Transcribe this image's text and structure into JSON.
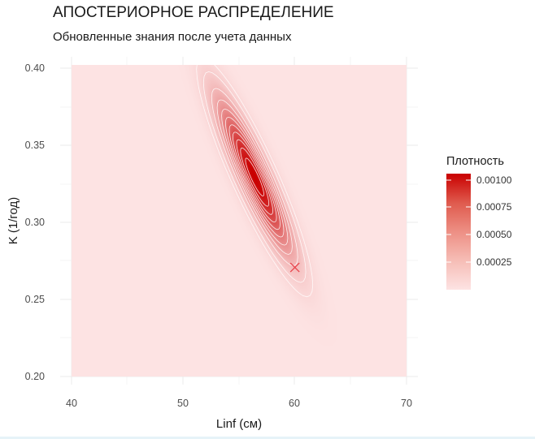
{
  "chart_data": {
    "type": "heatmap",
    "title": "АПОСТЕРИОРНОЕ РАСПРЕДЕЛЕНИЕ",
    "subtitle": "Обновленные знания после учета данных",
    "xlabel": "Linf (см)",
    "ylabel": "K (1/год)",
    "xlim": [
      40,
      70
    ],
    "ylim": [
      0.2,
      0.4
    ],
    "x_ticks": [
      "40",
      "50",
      "60",
      "70"
    ],
    "y_ticks": [
      "0.20",
      "0.25",
      "0.30",
      "0.35",
      "0.40"
    ],
    "grid": true,
    "density": {
      "center_x": 56.4,
      "center_y": 0.328,
      "sd_x": 2.1,
      "sd_y": 0.031,
      "correlation": -0.9,
      "max_density": 0.00108,
      "contour_levels": [
        5e-05,
        0.0001,
        0.0002,
        0.0003,
        0.0004,
        0.0005,
        0.0006,
        0.0007,
        0.0008,
        0.0009,
        0.001
      ]
    },
    "marker": {
      "x": 60,
      "y": 0.27,
      "symbol": "x",
      "color": "#e8434b"
    },
    "legend": {
      "title": "Плотность",
      "position": "right",
      "range": [
        0,
        0.00108
      ],
      "breaks": [
        0.00025,
        0.0005,
        0.00075,
        0.001
      ],
      "labels": [
        "0.00025",
        "0.00050",
        "0.00075",
        "0.00100"
      ]
    },
    "colors": {
      "low": "#fde3e3",
      "high": "#c90000",
      "contour": "#ffffff"
    }
  }
}
